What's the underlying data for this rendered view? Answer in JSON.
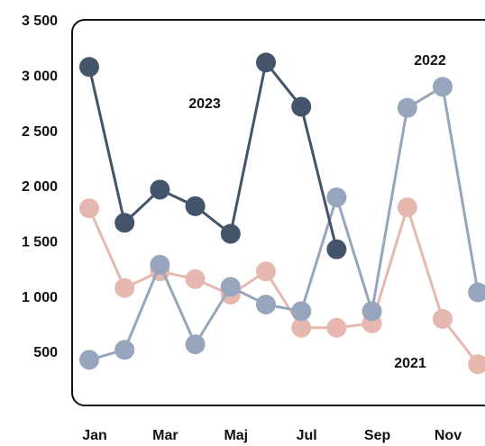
{
  "chart_data": {
    "type": "line",
    "categories": [
      "Jan",
      null,
      "Mar",
      null,
      "Maj",
      null,
      "Jul",
      null,
      "Sep",
      null,
      "Nov",
      null
    ],
    "series": [
      {
        "name": "2023",
        "color": "#44546a",
        "values": [
          3090,
          1680,
          1980,
          1830,
          1580,
          3130,
          2730,
          1440,
          null,
          null,
          null,
          null
        ]
      },
      {
        "name": "2022",
        "color": "#97a6bd",
        "values": [
          440,
          530,
          1300,
          580,
          1100,
          940,
          880,
          1910,
          880,
          2720,
          2910,
          1050
        ]
      },
      {
        "name": "2021",
        "color": "#e6b8b0",
        "values": [
          1810,
          1090,
          1240,
          1170,
          1030,
          1240,
          730,
          730,
          770,
          1820,
          810,
          400
        ]
      }
    ],
    "ylim": [
      0,
      3500
    ],
    "yticks": [
      500,
      {
        "value": 1000,
        "label": "1 000"
      },
      {
        "value": 1500,
        "label": "1 500"
      },
      {
        "value": 2000,
        "label": "2 000"
      },
      {
        "value": 2500,
        "label": "2 500"
      },
      {
        "value": 3000,
        "label": "3 000"
      },
      {
        "value": 3500,
        "label": "3 500"
      }
    ]
  }
}
